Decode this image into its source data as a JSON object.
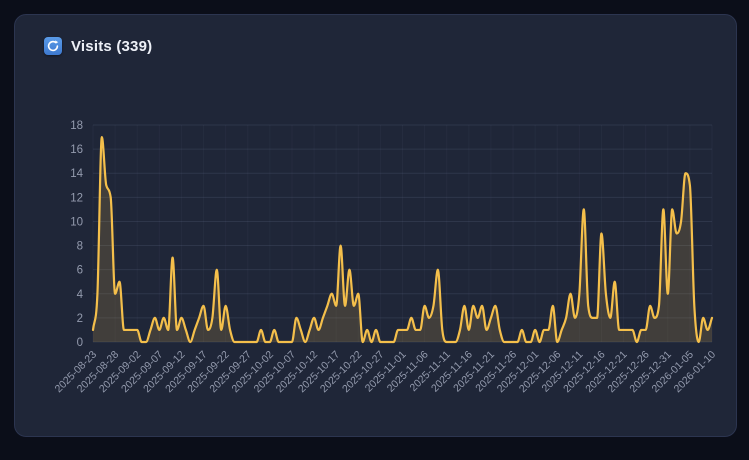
{
  "page": {
    "background": "#0b0e19"
  },
  "card": {
    "title": "Visits (339)",
    "background": "#1f2638",
    "border_color": "#2c3550",
    "icon": "refresh-icon",
    "icon_bg": "#4a86dd"
  },
  "chart_data": {
    "type": "area",
    "title": "Visits (339)",
    "total_visits": 339,
    "legend": "none",
    "grid": "on",
    "smoothing": "monotone",
    "ylim": [
      0,
      18
    ],
    "y_ticks": [
      0,
      2,
      4,
      6,
      8,
      10,
      12,
      14,
      16,
      18
    ],
    "x_tick_every": 5,
    "line_color": "#f4bf4b",
    "fill_color": "rgba(244,191,75,0.16)",
    "grid_color": "rgba(148,163,200,0.13)",
    "vgrid_color": "rgba(148,163,200,0.05)",
    "label_color": "#949bae",
    "x": [
      "2025-08-23",
      "2025-08-24",
      "2025-08-25",
      "2025-08-26",
      "2025-08-27",
      "2025-08-28",
      "2025-08-29",
      "2025-08-30",
      "2025-08-31",
      "2025-09-01",
      "2025-09-02",
      "2025-09-03",
      "2025-09-04",
      "2025-09-05",
      "2025-09-06",
      "2025-09-07",
      "2025-09-08",
      "2025-09-09",
      "2025-09-10",
      "2025-09-11",
      "2025-09-12",
      "2025-09-13",
      "2025-09-14",
      "2025-09-15",
      "2025-09-16",
      "2025-09-17",
      "2025-09-18",
      "2025-09-19",
      "2025-09-20",
      "2025-09-21",
      "2025-09-22",
      "2025-09-23",
      "2025-09-24",
      "2025-09-25",
      "2025-09-26",
      "2025-09-27",
      "2025-09-28",
      "2025-09-29",
      "2025-09-30",
      "2025-10-01",
      "2025-10-02",
      "2025-10-03",
      "2025-10-04",
      "2025-10-05",
      "2025-10-06",
      "2025-10-07",
      "2025-10-08",
      "2025-10-09",
      "2025-10-10",
      "2025-10-11",
      "2025-10-12",
      "2025-10-13",
      "2025-10-14",
      "2025-10-15",
      "2025-10-16",
      "2025-10-17",
      "2025-10-18",
      "2025-10-19",
      "2025-10-20",
      "2025-10-21",
      "2025-10-22",
      "2025-10-23",
      "2025-10-24",
      "2025-10-25",
      "2025-10-26",
      "2025-10-27",
      "2025-10-28",
      "2025-10-29",
      "2025-10-30",
      "2025-10-31",
      "2025-11-01",
      "2025-11-02",
      "2025-11-03",
      "2025-11-04",
      "2025-11-05",
      "2025-11-06",
      "2025-11-07",
      "2025-11-08",
      "2025-11-09",
      "2025-11-10",
      "2025-11-11",
      "2025-11-12",
      "2025-11-13",
      "2025-11-14",
      "2025-11-15",
      "2025-11-16",
      "2025-11-17",
      "2025-11-18",
      "2025-11-19",
      "2025-11-20",
      "2025-11-21",
      "2025-11-22",
      "2025-11-23",
      "2025-11-24",
      "2025-11-25",
      "2025-11-26",
      "2025-11-27",
      "2025-11-28",
      "2025-11-29",
      "2025-11-30",
      "2025-12-01",
      "2025-12-02",
      "2025-12-03",
      "2025-12-04",
      "2025-12-05",
      "2025-12-06",
      "2025-12-07",
      "2025-12-08",
      "2025-12-09",
      "2025-12-10",
      "2025-12-11",
      "2025-12-12",
      "2025-12-13",
      "2025-12-14",
      "2025-12-15",
      "2025-12-16",
      "2025-12-17",
      "2025-12-18",
      "2025-12-19",
      "2025-12-20",
      "2025-12-21",
      "2025-12-22",
      "2025-12-23",
      "2025-12-24",
      "2025-12-25",
      "2025-12-26",
      "2025-12-27",
      "2025-12-28",
      "2025-12-29",
      "2025-12-30",
      "2025-12-31",
      "2026-01-01",
      "2026-01-02",
      "2026-01-03",
      "2026-01-04",
      "2026-01-05",
      "2026-01-06",
      "2026-01-07",
      "2026-01-08",
      "2026-01-09",
      "2026-01-10"
    ],
    "values": [
      1,
      4,
      17,
      13,
      12,
      4,
      5,
      1,
      1,
      1,
      1,
      0,
      0,
      1,
      2,
      1,
      2,
      1,
      7,
      1,
      2,
      1,
      0,
      1,
      2,
      3,
      1,
      2,
      6,
      1,
      3,
      1,
      0,
      0,
      0,
      0,
      0,
      0,
      1,
      0,
      0,
      1,
      0,
      0,
      0,
      0,
      2,
      1,
      0,
      1,
      2,
      1,
      2,
      3,
      4,
      3,
      8,
      3,
      6,
      3,
      4,
      0,
      1,
      0,
      1,
      0,
      0,
      0,
      0,
      1,
      1,
      1,
      2,
      1,
      1,
      3,
      2,
      3,
      6,
      1,
      0,
      0,
      0,
      1,
      3,
      1,
      3,
      2,
      3,
      1,
      2,
      3,
      1,
      0,
      0,
      0,
      0,
      1,
      0,
      0,
      1,
      0,
      1,
      1,
      3,
      0,
      1,
      2,
      4,
      2,
      4,
      11,
      3,
      2,
      2,
      9,
      4,
      2,
      5,
      1,
      1,
      1,
      1,
      0,
      1,
      1,
      3,
      2,
      3,
      11,
      4,
      11,
      9,
      10,
      14,
      13,
      3,
      0,
      2,
      1,
      2
    ]
  }
}
